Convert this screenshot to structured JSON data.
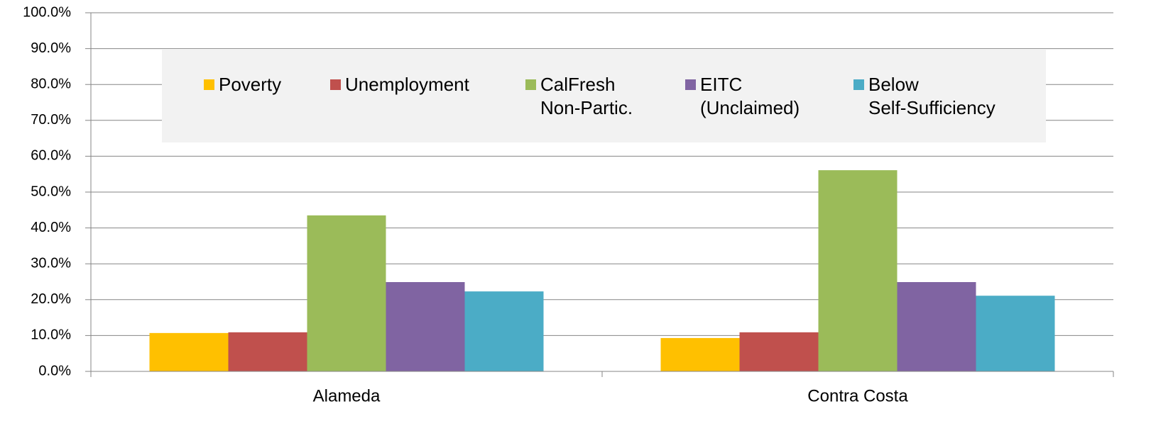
{
  "chart_data": {
    "type": "bar",
    "categories": [
      "Alameda",
      "Contra Costa"
    ],
    "series": [
      {
        "name": "Poverty",
        "color": "#ffc000",
        "values": [
          10.7,
          9.3
        ]
      },
      {
        "name": "Unemployment",
        "color": "#c0504d",
        "values": [
          10.9,
          10.9
        ]
      },
      {
        "name": "CalFresh\nNon-Partic.",
        "color": "#9bbb59",
        "values": [
          43.5,
          56.1
        ]
      },
      {
        "name": "EITC\n(Unclaimed)",
        "color": "#8064a2",
        "values": [
          24.9,
          24.9
        ]
      },
      {
        "name": "Below\nSelf-Sufficiency",
        "color": "#4bacc6",
        "values": [
          22.3,
          21.1
        ]
      }
    ],
    "ylim": [
      0,
      100
    ],
    "yticks": [
      {
        "value": 0,
        "label": "0.0%"
      },
      {
        "value": 10,
        "label": "10.0%"
      },
      {
        "value": 20,
        "label": "20.0%"
      },
      {
        "value": 30,
        "label": "30.0%"
      },
      {
        "value": 40,
        "label": "40.0%"
      },
      {
        "value": 50,
        "label": "50.0%"
      },
      {
        "value": 60,
        "label": "60.0%"
      },
      {
        "value": 70,
        "label": "70.0%"
      },
      {
        "value": 80,
        "label": "80.0%"
      },
      {
        "value": 90,
        "label": "90.0%"
      },
      {
        "value": 100,
        "label": "100.0%"
      }
    ],
    "grid": true,
    "legend": "top"
  }
}
